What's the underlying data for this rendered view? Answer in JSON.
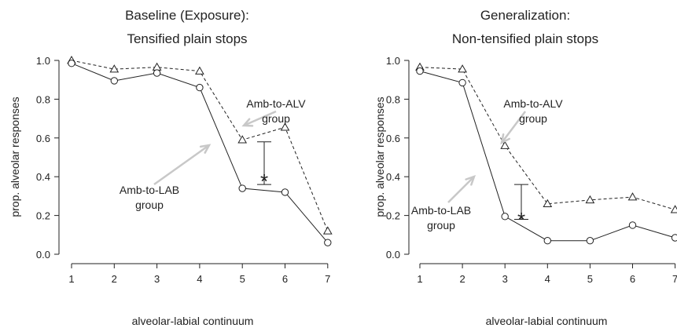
{
  "colors": {
    "line": "#222222",
    "arrow": "#c8c8c8"
  },
  "chart_data": [
    {
      "type": "line",
      "title": "Baseline (Exposure):",
      "subtitle": "Tensified plain stops",
      "xlabel": "alveolar-labial continuum",
      "ylabel": "prop. alveolar responses",
      "x": [
        1,
        2,
        3,
        4,
        5,
        6,
        7
      ],
      "xticks": [
        "1",
        "2",
        "3",
        "4",
        "5",
        "6",
        "7"
      ],
      "yticks": [
        "0.0",
        "0.2",
        "0.4",
        "0.6",
        "0.8",
        "1.0"
      ],
      "ylim": [
        0,
        1
      ],
      "grid": false,
      "series": [
        {
          "name": "Amb-to-ALV group",
          "marker": "triangle",
          "style": "dashed",
          "values": [
            1.0,
            0.955,
            0.965,
            0.945,
            0.59,
            0.655,
            0.12
          ]
        },
        {
          "name": "Amb-to-LAB group",
          "marker": "circle",
          "style": "solid",
          "values": [
            0.985,
            0.895,
            0.935,
            0.86,
            0.34,
            0.32,
            0.06
          ]
        }
      ],
      "annotations": [
        {
          "text_lines": [
            "Amb-to-ALV",
            "group"
          ]
        },
        {
          "text_lines": [
            "Amb-to-LAB",
            "group"
          ]
        },
        {
          "text": "*",
          "x": 5.5,
          "ymin": 0.36,
          "ymax": 0.58
        }
      ]
    },
    {
      "type": "line",
      "title": "Generalization:",
      "subtitle": "Non-tensified plain stops",
      "xlabel": "alveolar-labial continuum",
      "ylabel": "prop. alveolar responses",
      "x": [
        1,
        2,
        3,
        4,
        5,
        6,
        7
      ],
      "xticks": [
        "1",
        "2",
        "3",
        "4",
        "5",
        "6",
        "7"
      ],
      "yticks": [
        "0.0",
        "0.2",
        "0.4",
        "0.6",
        "0.8",
        "1.0"
      ],
      "ylim": [
        0,
        1
      ],
      "grid": false,
      "series": [
        {
          "name": "Amb-to-ALV group",
          "marker": "triangle",
          "style": "dashed",
          "values": [
            0.965,
            0.955,
            0.56,
            0.26,
            0.28,
            0.295,
            0.23
          ]
        },
        {
          "name": "Amb-to-LAB group",
          "marker": "circle",
          "style": "solid",
          "values": [
            0.945,
            0.885,
            0.195,
            0.07,
            0.07,
            0.15,
            0.085
          ]
        }
      ],
      "annotations": [
        {
          "text_lines": [
            "Amb-to-ALV",
            "group"
          ]
        },
        {
          "text_lines": [
            "Amb-to-LAB",
            "group"
          ]
        },
        {
          "text": "*",
          "x": 3.4,
          "ymin": 0.18,
          "ymax": 0.36
        }
      ]
    }
  ]
}
